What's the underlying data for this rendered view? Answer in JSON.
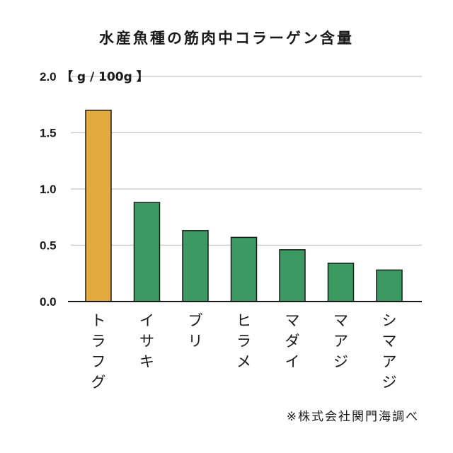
{
  "chart_data": {
    "type": "bar",
    "title": "水産魚種の筋肉中コラーゲン含量",
    "ylabel": "",
    "unit": "【 g / 100g 】",
    "categories": [
      "トラフグ",
      "イサキ",
      "ブリ",
      "ヒラメ",
      "マダイ",
      "マアジ",
      "シマアジ"
    ],
    "values": [
      1.7,
      0.88,
      0.63,
      0.57,
      0.46,
      0.34,
      0.28
    ],
    "ylim": [
      0,
      2.0
    ],
    "yticks": [
      "0.0",
      "0.5",
      "1.0",
      "1.5",
      "2.0"
    ],
    "grid": true,
    "colors": {
      "highlight": "#E3AA3F",
      "bar": "#3B9961",
      "bar_stroke": "#1a1a1a",
      "grid": "#cfcfcf",
      "axis": "#1a1a1a"
    },
    "highlight_index": 0,
    "source": "※株式会社関門海調べ"
  }
}
